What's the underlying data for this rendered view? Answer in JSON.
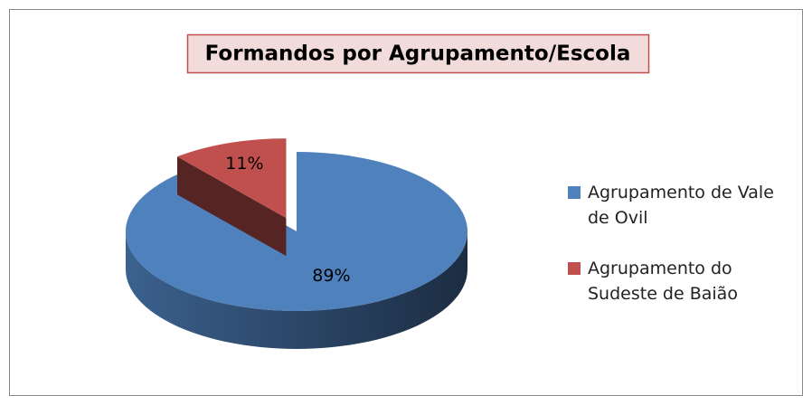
{
  "chart_data": {
    "type": "pie",
    "title": "Formandos por Agrupamento/Escola",
    "categories": [
      "Agrupamento de Vale de Ovil",
      "Agrupamento do Sudeste de Baião"
    ],
    "values": [
      89,
      11
    ],
    "value_labels": [
      "89%",
      "11%"
    ],
    "colors": [
      "#4f81bd",
      "#c0504d"
    ],
    "legend": "right"
  }
}
